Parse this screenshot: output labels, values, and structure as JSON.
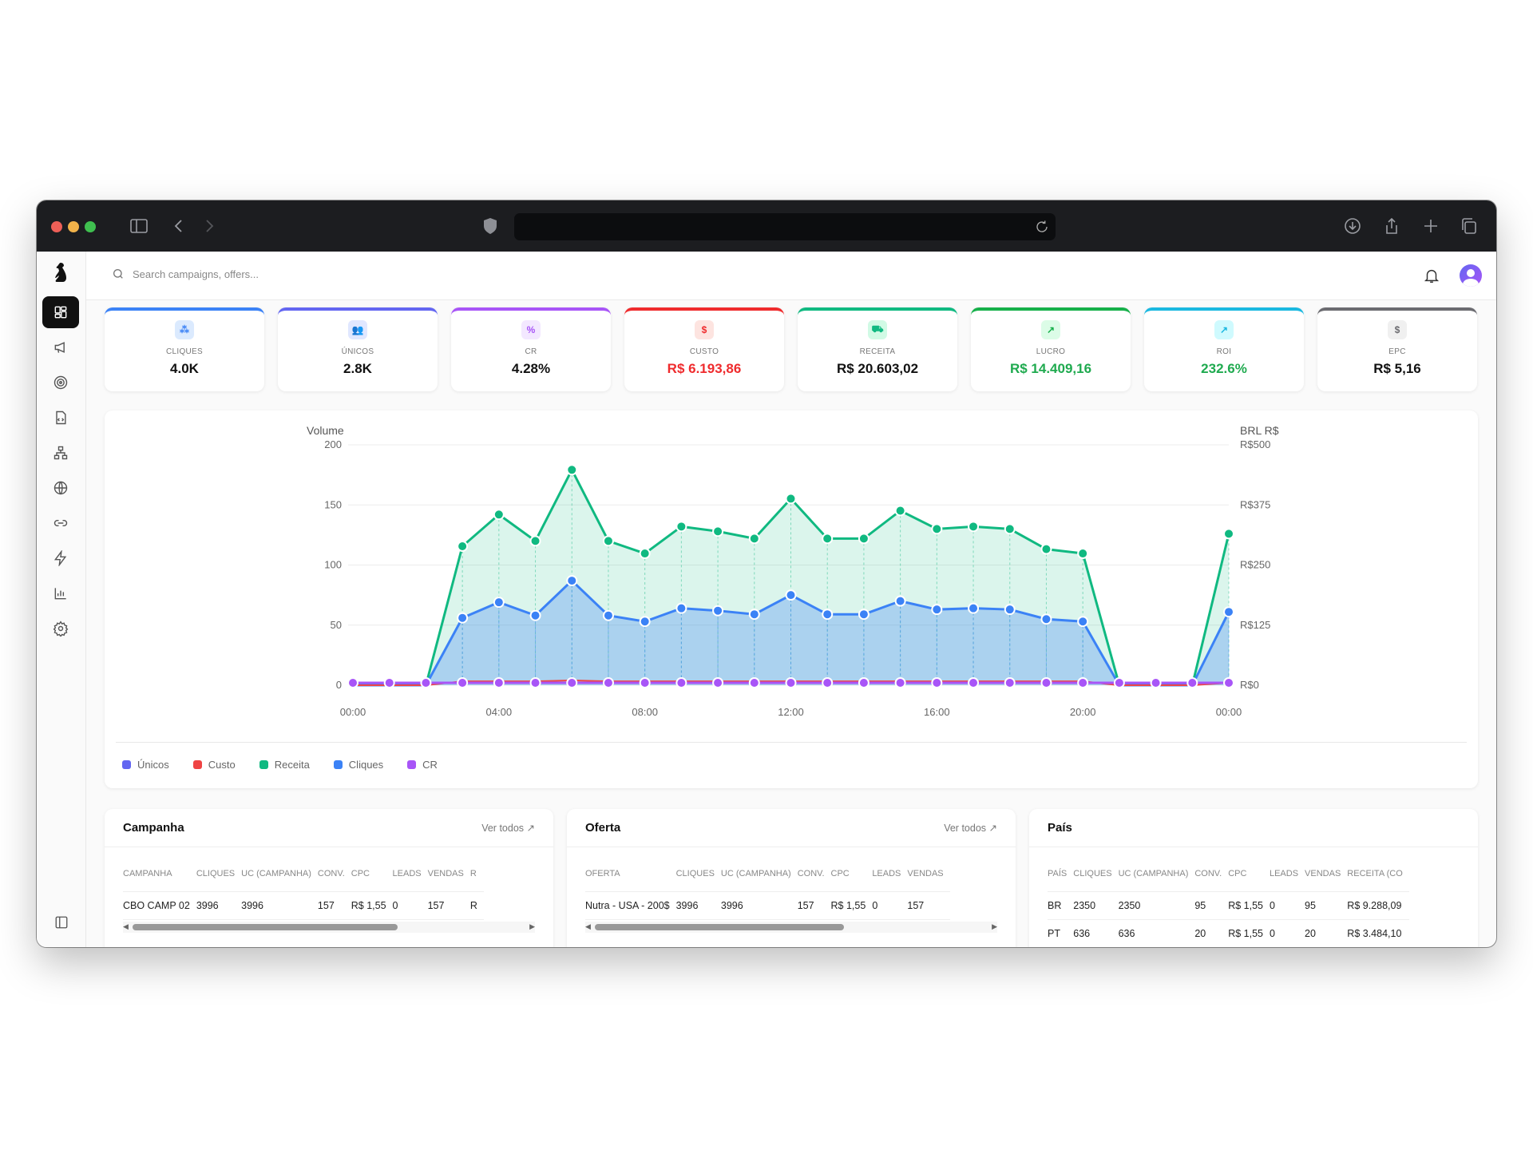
{
  "header": {
    "search_placeholder": "Search campaigns, offers..."
  },
  "sidebar": {
    "items": [
      {
        "icon": "dashboard-icon",
        "active": true
      },
      {
        "icon": "megaphone-icon"
      },
      {
        "icon": "target-icon"
      },
      {
        "icon": "code-file-icon"
      },
      {
        "icon": "network-icon"
      },
      {
        "icon": "globe-icon"
      },
      {
        "icon": "link-icon"
      },
      {
        "icon": "bolt-icon"
      },
      {
        "icon": "bar-chart-icon"
      },
      {
        "icon": "gear-icon"
      }
    ]
  },
  "kpis": [
    {
      "label": "CLIQUES",
      "value": "4.0K",
      "color": "#3b82f6",
      "icon_bg": "#dbeafe",
      "icon": "pointer-click-icon",
      "glyph": "⁂",
      "value_color": "#111111"
    },
    {
      "label": "ÚNICOS",
      "value": "2.8K",
      "color": "#6366f1",
      "icon_bg": "#e0e7ff",
      "icon": "users-icon",
      "glyph": "👥",
      "value_color": "#111111"
    },
    {
      "label": "CR",
      "value": "4.28%",
      "color": "#a855f7",
      "icon_bg": "#f3e8ff",
      "icon": "percent-icon",
      "glyph": "%",
      "value_color": "#111111"
    },
    {
      "label": "CUSTO",
      "value": "R$ 6.193,86",
      "color": "#ef2b2d",
      "icon_bg": "#fde4e0",
      "icon": "dollar-icon",
      "glyph": "$",
      "value_color": "#ef2b2d"
    },
    {
      "label": "RECEITA",
      "value": "R$ 20.603,02",
      "color": "#10b981",
      "icon_bg": "#d1fae5",
      "icon": "cart-icon",
      "glyph": "⛟",
      "value_color": "#111111"
    },
    {
      "label": "LUCRO",
      "value": "R$ 14.409,16",
      "color": "#16b04a",
      "icon_bg": "#dcfce7",
      "icon": "trending-up-icon",
      "glyph": "↗",
      "value_color": "#1faa4f"
    },
    {
      "label": "ROI",
      "value": "232.6%",
      "color": "#1ab8e0",
      "icon_bg": "#cffafe",
      "icon": "arrow-up-right-icon",
      "glyph": "↗",
      "value_color": "#1faa4f"
    },
    {
      "label": "EPC",
      "value": "R$ 5,16",
      "color": "#6b6b70",
      "icon_bg": "#f0f0f0",
      "icon": "dollar-icon",
      "glyph": "$",
      "value_color": "#111111"
    }
  ],
  "chart_data": {
    "type": "area",
    "x": [
      "00:00",
      "01:00",
      "02:00",
      "03:00",
      "04:00",
      "05:00",
      "06:00",
      "07:00",
      "08:00",
      "09:00",
      "10:00",
      "11:00",
      "12:00",
      "13:00",
      "14:00",
      "15:00",
      "16:00",
      "17:00",
      "18:00",
      "19:00",
      "20:00",
      "21:00",
      "22:00",
      "23:00",
      "00:00"
    ],
    "x_tick_labels": [
      "00:00",
      "04:00",
      "08:00",
      "12:00",
      "16:00",
      "20:00",
      "00:00"
    ],
    "ylabel_left": "Volume",
    "ylabel_right": "BRL R$",
    "ylim_left": [
      0,
      200
    ],
    "ylim_right": [
      0,
      500
    ],
    "yticks_left": [
      "0",
      "50",
      "100",
      "150",
      "200"
    ],
    "yticks_right": [
      "R$0",
      "R$125",
      "R$250",
      "R$375",
      "R$500"
    ],
    "grid": true,
    "legend": "bottom-left",
    "series": [
      {
        "name": "Únicos",
        "color": "#6366f1",
        "axis": "left",
        "values": [
          0,
          0,
          0,
          56,
          69,
          58,
          87,
          58,
          53,
          64,
          62,
          59,
          75,
          59,
          59,
          70,
          63,
          64,
          63,
          55,
          53,
          0,
          0,
          0,
          61
        ]
      },
      {
        "name": "Custo",
        "color": "#ef4444",
        "axis": "right",
        "values": [
          0,
          0,
          0,
          8,
          8,
          8,
          10,
          8,
          8,
          8,
          8,
          8,
          8,
          8,
          8,
          8,
          8,
          8,
          8,
          8,
          8,
          0,
          0,
          0,
          5
        ]
      },
      {
        "name": "Receita",
        "color": "#10b981",
        "axis": "right",
        "values": [
          0,
          0,
          0,
          289,
          355,
          300,
          448,
          300,
          274,
          330,
          320,
          305,
          388,
          305,
          305,
          363,
          325,
          330,
          325,
          283,
          274,
          0,
          0,
          0,
          315
        ]
      },
      {
        "name": "Cliques",
        "color": "#3b82f6",
        "axis": "left",
        "values": [
          0,
          0,
          0,
          56,
          69,
          58,
          87,
          58,
          53,
          64,
          62,
          59,
          75,
          59,
          59,
          70,
          63,
          64,
          63,
          55,
          53,
          0,
          0,
          0,
          61
        ]
      },
      {
        "name": "CR",
        "color": "#a855f7",
        "axis": "left",
        "values": [
          2,
          2,
          2,
          2,
          2,
          2,
          2,
          2,
          2,
          2,
          2,
          2,
          2,
          2,
          2,
          2,
          2,
          2,
          2,
          2,
          2,
          2,
          2,
          2,
          2
        ]
      }
    ]
  },
  "tables": [
    {
      "title": "Campanha",
      "link": "Ver todos",
      "columns": [
        "CAMPANHA",
        "CLIQUES",
        "UC (CAMPANHA)",
        "CONV.",
        "CPC",
        "LEADS",
        "VENDAS",
        "R"
      ],
      "rows": [
        [
          "CBO CAMP 02",
          "3996",
          "3996",
          "157",
          "R$ 1,55",
          "0",
          "157",
          "R"
        ]
      ],
      "thumb": 0.83
    },
    {
      "title": "Oferta",
      "link": "Ver todos",
      "columns": [
        "OFERTA",
        "CLIQUES",
        "UC (CAMPANHA)",
        "CONV.",
        "CPC",
        "LEADS",
        "VENDAS"
      ],
      "rows": [
        [
          "Nutra - USA - 200$",
          "3996",
          "3996",
          "157",
          "R$ 1,55",
          "0",
          "157"
        ]
      ],
      "thumb": 0.78
    },
    {
      "title": "País",
      "link": "",
      "columns": [
        "PAÍS",
        "CLIQUES",
        "UC (CAMPANHA)",
        "CONV.",
        "CPC",
        "LEADS",
        "VENDAS",
        "RECEITA (CO"
      ],
      "rows": [
        [
          "BR",
          "2350",
          "2350",
          "95",
          "R$ 1,55",
          "0",
          "95",
          "R$ 9.288,09"
        ],
        [
          "PT",
          "636",
          "636",
          "20",
          "R$ 1,55",
          "0",
          "20",
          "R$ 3.484,10"
        ]
      ]
    }
  ]
}
